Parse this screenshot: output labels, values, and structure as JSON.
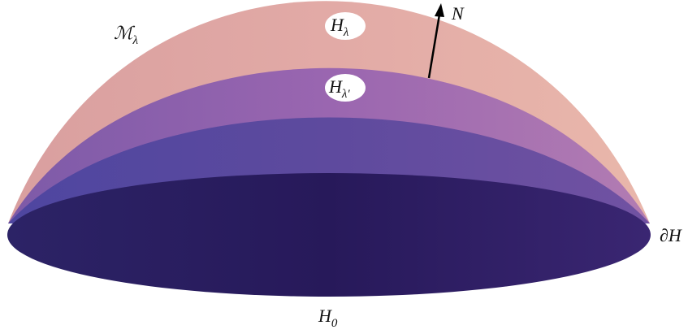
{
  "labels": {
    "manifold": {
      "base": "ℳ",
      "sub": "λ"
    },
    "h_lambda": {
      "base": "H",
      "sub": "λ"
    },
    "h_lambda_prime": {
      "base": "H",
      "sub": "λ′"
    },
    "normal": "N",
    "boundary": "∂H",
    "h_zero": {
      "base": "H",
      "sub": "0"
    }
  }
}
